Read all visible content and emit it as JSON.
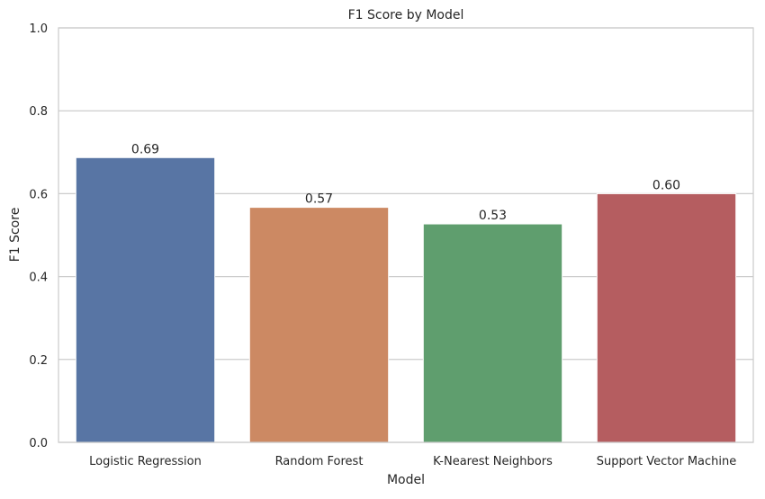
{
  "chart_data": {
    "type": "bar",
    "title": "F1 Score by Model",
    "xlabel": "Model",
    "ylabel": "F1 Score",
    "categories": [
      "Logistic Regression",
      "Random Forest",
      "K-Nearest Neighbors",
      "Support Vector Machine"
    ],
    "values": [
      0.687,
      0.567,
      0.527,
      0.6
    ],
    "value_labels": [
      "0.69",
      "0.57",
      "0.53",
      "0.60"
    ],
    "colors": [
      "#5875a4",
      "#cc8963",
      "#5f9e6e",
      "#b55d60"
    ],
    "ylim": [
      0,
      1.0
    ],
    "yticks": [
      0.0,
      0.2,
      0.4,
      0.6,
      0.8,
      1.0
    ],
    "ytick_labels": [
      "0.0",
      "0.2",
      "0.4",
      "0.6",
      "0.8",
      "1.0"
    ],
    "grid": true,
    "grid_axis": "y",
    "legend": false
  }
}
